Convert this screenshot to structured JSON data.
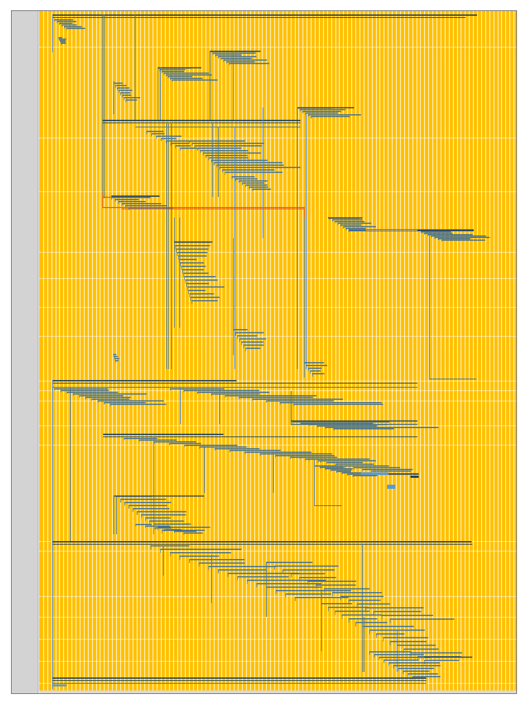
{
  "app": {
    "view": "gantt-chart",
    "timescale_columns": 118
  },
  "colors": {
    "background": "#ffffff",
    "task_panel": "#d3d3d3",
    "timeline_fill": "#ffc000",
    "gridline": "#ffffff",
    "task_bar": "#3d6e99",
    "summary_bar": "#1f3f5c",
    "link_line": "#4a7fab",
    "critical_path": "#e04a1a",
    "milestone": "#5b9bd5"
  },
  "legend": {
    "task": "task-bar",
    "summary": "summary-bar",
    "critical": "critical-path-link"
  }
}
